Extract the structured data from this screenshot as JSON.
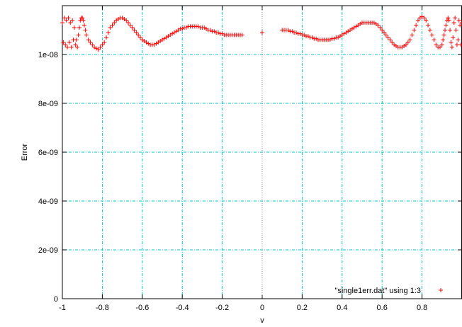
{
  "chart_data": {
    "type": "scatter",
    "xlabel": "v",
    "ylabel": "Error",
    "xlim": [
      -1,
      1
    ],
    "ylim": [
      0,
      1.2e-08
    ],
    "x_ticks": [
      "-1",
      "-0.8",
      "-0.6",
      "-0.4",
      "-0.2",
      "0",
      "0.2",
      "0.4",
      "0.6",
      "0.8"
    ],
    "y_ticks": [
      "0",
      "2e-09",
      "4e-09",
      "6e-09",
      "8e-09",
      "1e-08"
    ],
    "grid": true,
    "legend_position": "bottom-right",
    "colors": {
      "series": "#ff0000",
      "grid": "#00c8c8",
      "zero_axis": "#9b7fbf",
      "frame": "#000000"
    },
    "series": [
      {
        "name": "\"single1err.dat\" using 1:3",
        "marker": "plus",
        "points": [
          [
            -1.0,
            1.13e-08
          ],
          [
            -0.995,
            1.05e-08
          ],
          [
            -0.99,
            1.15e-08
          ],
          [
            -0.985,
            1.04e-08
          ],
          [
            -0.98,
            1.14e-08
          ],
          [
            -0.975,
            1.03e-08
          ],
          [
            -0.97,
            1.15e-08
          ],
          [
            -0.965,
            1.05e-08
          ],
          [
            -0.96,
            1.13e-08
          ],
          [
            -0.955,
            1.03e-08
          ],
          [
            -0.95,
            1.14e-08
          ],
          [
            -0.945,
            1.06e-08
          ],
          [
            -0.94,
            1.11e-08
          ],
          [
            -0.935,
            1.04e-08
          ],
          [
            -0.93,
            1.06e-08
          ],
          [
            -0.925,
            1.03e-08
          ],
          [
            -0.92,
            1.08e-08
          ],
          [
            -0.915,
            1.11e-08
          ],
          [
            -0.91,
            1.14e-08
          ],
          [
            -0.905,
            1.15e-08
          ],
          [
            -0.9,
            1.15e-08
          ],
          [
            -0.895,
            1.14e-08
          ],
          [
            -0.89,
            1.12e-08
          ],
          [
            -0.885,
            1.1e-08
          ],
          [
            -0.88,
            1.08e-08
          ],
          [
            -0.87,
            1.06e-08
          ],
          [
            -0.86,
            1.05e-08
          ],
          [
            -0.85,
            1.04e-08
          ],
          [
            -0.84,
            1.03e-08
          ],
          [
            -0.83,
            1.025e-08
          ],
          [
            -0.82,
            1.02e-08
          ],
          [
            -0.81,
            1.03e-08
          ],
          [
            -0.8,
            1.04e-08
          ],
          [
            -0.79,
            1.05e-08
          ],
          [
            -0.78,
            1.07e-08
          ],
          [
            -0.77,
            1.09e-08
          ],
          [
            -0.76,
            1.11e-08
          ],
          [
            -0.75,
            1.12e-08
          ],
          [
            -0.74,
            1.13e-08
          ],
          [
            -0.73,
            1.14e-08
          ],
          [
            -0.72,
            1.145e-08
          ],
          [
            -0.71,
            1.15e-08
          ],
          [
            -0.7,
            1.15e-08
          ],
          [
            -0.69,
            1.145e-08
          ],
          [
            -0.68,
            1.14e-08
          ],
          [
            -0.67,
            1.13e-08
          ],
          [
            -0.66,
            1.12e-08
          ],
          [
            -0.65,
            1.11e-08
          ],
          [
            -0.64,
            1.1e-08
          ],
          [
            -0.63,
            1.09e-08
          ],
          [
            -0.62,
            1.08e-08
          ],
          [
            -0.61,
            1.07e-08
          ],
          [
            -0.6,
            1.06e-08
          ],
          [
            -0.59,
            1.055e-08
          ],
          [
            -0.58,
            1.05e-08
          ],
          [
            -0.57,
            1.045e-08
          ],
          [
            -0.56,
            1.04e-08
          ],
          [
            -0.55,
            1.04e-08
          ],
          [
            -0.54,
            1.04e-08
          ],
          [
            -0.53,
            1.045e-08
          ],
          [
            -0.52,
            1.05e-08
          ],
          [
            -0.51,
            1.055e-08
          ],
          [
            -0.5,
            1.06e-08
          ],
          [
            -0.49,
            1.065e-08
          ],
          [
            -0.48,
            1.07e-08
          ],
          [
            -0.47,
            1.075e-08
          ],
          [
            -0.46,
            1.08e-08
          ],
          [
            -0.45,
            1.085e-08
          ],
          [
            -0.44,
            1.09e-08
          ],
          [
            -0.43,
            1.095e-08
          ],
          [
            -0.42,
            1.1e-08
          ],
          [
            -0.41,
            1.105e-08
          ],
          [
            -0.4,
            1.105e-08
          ],
          [
            -0.39,
            1.11e-08
          ],
          [
            -0.38,
            1.11e-08
          ],
          [
            -0.37,
            1.115e-08
          ],
          [
            -0.36,
            1.115e-08
          ],
          [
            -0.35,
            1.115e-08
          ],
          [
            -0.34,
            1.115e-08
          ],
          [
            -0.33,
            1.115e-08
          ],
          [
            -0.32,
            1.115e-08
          ],
          [
            -0.31,
            1.11e-08
          ],
          [
            -0.3,
            1.11e-08
          ],
          [
            -0.29,
            1.11e-08
          ],
          [
            -0.28,
            1.105e-08
          ],
          [
            -0.27,
            1.1e-08
          ],
          [
            -0.26,
            1.1e-08
          ],
          [
            -0.25,
            1.095e-08
          ],
          [
            -0.24,
            1.095e-08
          ],
          [
            -0.23,
            1.09e-08
          ],
          [
            -0.22,
            1.09e-08
          ],
          [
            -0.21,
            1.085e-08
          ],
          [
            -0.2,
            1.085e-08
          ],
          [
            -0.19,
            1.08e-08
          ],
          [
            -0.18,
            1.08e-08
          ],
          [
            -0.17,
            1.08e-08
          ],
          [
            -0.16,
            1.08e-08
          ],
          [
            -0.15,
            1.08e-08
          ],
          [
            -0.14,
            1.08e-08
          ],
          [
            -0.13,
            1.08e-08
          ],
          [
            -0.12,
            1.08e-08
          ],
          [
            -0.11,
            1.08e-08
          ],
          [
            -0.1,
            1.08e-08
          ],
          [
            0.0,
            1.09e-08
          ],
          [
            0.1,
            1.1e-08
          ],
          [
            0.11,
            1.1e-08
          ],
          [
            0.12,
            1.1e-08
          ],
          [
            0.13,
            1.1e-08
          ],
          [
            0.14,
            1.095e-08
          ],
          [
            0.15,
            1.095e-08
          ],
          [
            0.16,
            1.09e-08
          ],
          [
            0.17,
            1.09e-08
          ],
          [
            0.18,
            1.085e-08
          ],
          [
            0.19,
            1.085e-08
          ],
          [
            0.2,
            1.08e-08
          ],
          [
            0.21,
            1.08e-08
          ],
          [
            0.22,
            1.075e-08
          ],
          [
            0.23,
            1.075e-08
          ],
          [
            0.24,
            1.07e-08
          ],
          [
            0.25,
            1.07e-08
          ],
          [
            0.26,
            1.065e-08
          ],
          [
            0.27,
            1.065e-08
          ],
          [
            0.28,
            1.06e-08
          ],
          [
            0.29,
            1.06e-08
          ],
          [
            0.3,
            1.06e-08
          ],
          [
            0.31,
            1.06e-08
          ],
          [
            0.32,
            1.06e-08
          ],
          [
            0.33,
            1.06e-08
          ],
          [
            0.34,
            1.06e-08
          ],
          [
            0.35,
            1.065e-08
          ],
          [
            0.36,
            1.065e-08
          ],
          [
            0.37,
            1.07e-08
          ],
          [
            0.38,
            1.07e-08
          ],
          [
            0.39,
            1.075e-08
          ],
          [
            0.4,
            1.08e-08
          ],
          [
            0.41,
            1.085e-08
          ],
          [
            0.42,
            1.09e-08
          ],
          [
            0.43,
            1.095e-08
          ],
          [
            0.44,
            1.1e-08
          ],
          [
            0.45,
            1.105e-08
          ],
          [
            0.46,
            1.11e-08
          ],
          [
            0.47,
            1.115e-08
          ],
          [
            0.48,
            1.12e-08
          ],
          [
            0.49,
            1.125e-08
          ],
          [
            0.5,
            1.13e-08
          ],
          [
            0.51,
            1.13e-08
          ],
          [
            0.52,
            1.13e-08
          ],
          [
            0.53,
            1.13e-08
          ],
          [
            0.54,
            1.13e-08
          ],
          [
            0.55,
            1.13e-08
          ],
          [
            0.56,
            1.13e-08
          ],
          [
            0.57,
            1.125e-08
          ],
          [
            0.58,
            1.12e-08
          ],
          [
            0.59,
            1.11e-08
          ],
          [
            0.6,
            1.1e-08
          ],
          [
            0.61,
            1.09e-08
          ],
          [
            0.62,
            1.08e-08
          ],
          [
            0.63,
            1.07e-08
          ],
          [
            0.64,
            1.06e-08
          ],
          [
            0.65,
            1.05e-08
          ],
          [
            0.66,
            1.04e-08
          ],
          [
            0.67,
            1.035e-08
          ],
          [
            0.68,
            1.03e-08
          ],
          [
            0.69,
            1.03e-08
          ],
          [
            0.7,
            1.03e-08
          ],
          [
            0.71,
            1.035e-08
          ],
          [
            0.72,
            1.04e-08
          ],
          [
            0.73,
            1.05e-08
          ],
          [
            0.74,
            1.06e-08
          ],
          [
            0.75,
            1.08e-08
          ],
          [
            0.76,
            1.1e-08
          ],
          [
            0.77,
            1.12e-08
          ],
          [
            0.78,
            1.14e-08
          ],
          [
            0.79,
            1.15e-08
          ],
          [
            0.8,
            1.155e-08
          ],
          [
            0.81,
            1.15e-08
          ],
          [
            0.82,
            1.14e-08
          ],
          [
            0.83,
            1.12e-08
          ],
          [
            0.84,
            1.1e-08
          ],
          [
            0.85,
            1.08e-08
          ],
          [
            0.86,
            1.06e-08
          ],
          [
            0.87,
            1.04e-08
          ],
          [
            0.88,
            1.03e-08
          ],
          [
            0.89,
            1.03e-08
          ],
          [
            0.9,
            1.04e-08
          ],
          [
            0.905,
            1.06e-08
          ],
          [
            0.91,
            1.08e-08
          ],
          [
            0.915,
            1.1e-08
          ],
          [
            0.92,
            1.12e-08
          ],
          [
            0.925,
            1.14e-08
          ],
          [
            0.93,
            1.15e-08
          ],
          [
            0.935,
            1.14e-08
          ],
          [
            0.94,
            1.1e-08
          ],
          [
            0.945,
            1.05e-08
          ],
          [
            0.95,
            1.03e-08
          ],
          [
            0.955,
            1.07e-08
          ],
          [
            0.96,
            1.13e-08
          ],
          [
            0.965,
            1.15e-08
          ],
          [
            0.97,
            1.1e-08
          ],
          [
            0.975,
            1.04e-08
          ],
          [
            0.98,
            1.06e-08
          ],
          [
            0.985,
            1.14e-08
          ],
          [
            0.99,
            1.12e-08
          ],
          [
            0.995,
            1.04e-08
          ],
          [
            1.0,
            1.13e-08
          ]
        ]
      }
    ]
  }
}
